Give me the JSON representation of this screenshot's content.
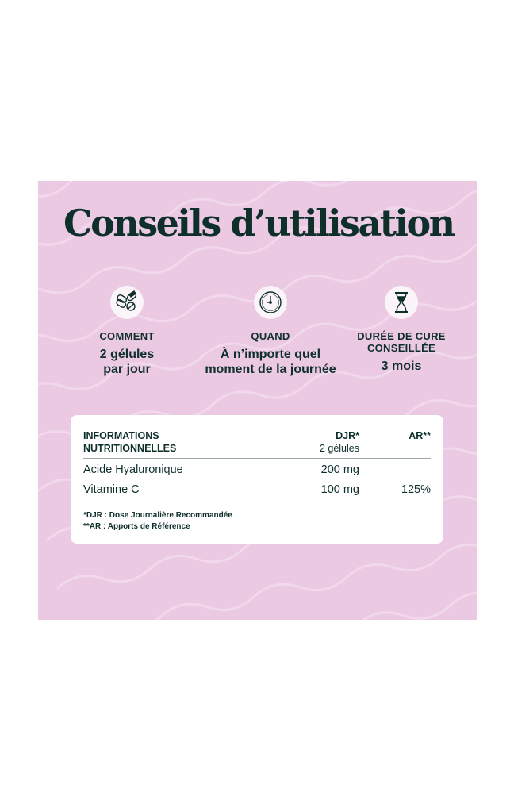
{
  "title": "Conseils d’utilisation",
  "colors": {
    "background": "#ecc9e3",
    "text": "#0f2f2b",
    "card": "#ffffff"
  },
  "tips": [
    {
      "icon": "pills-icon",
      "label": "COMMENT",
      "value_line1": "2 gélules",
      "value_line2": "par jour"
    },
    {
      "icon": "clock-icon",
      "label": "QUAND",
      "value_line1": "À n’importe quel",
      "value_line2": "moment de la journée"
    },
    {
      "icon": "hourglass-icon",
      "label_line1": "DURÉE DE CURE",
      "label_line2": "CONSEILLÉE",
      "value_line1": "3 mois"
    }
  ],
  "table": {
    "header_line1": "INFORMATIONS",
    "header_line2": "NUTRITIONNELLES",
    "col_djr": "DJR*",
    "col_djr_sub": "2 gélules",
    "col_ar": "AR**",
    "rows": [
      {
        "name": "Acide Hyaluronique",
        "djr": "200 mg",
        "ar": ""
      },
      {
        "name": "Vitamine C",
        "djr": "100 mg",
        "ar": "125%"
      }
    ],
    "footnote1": "*DJR : Dose Journalière Recommandée",
    "footnote2": "**AR : Apports de Référence"
  }
}
